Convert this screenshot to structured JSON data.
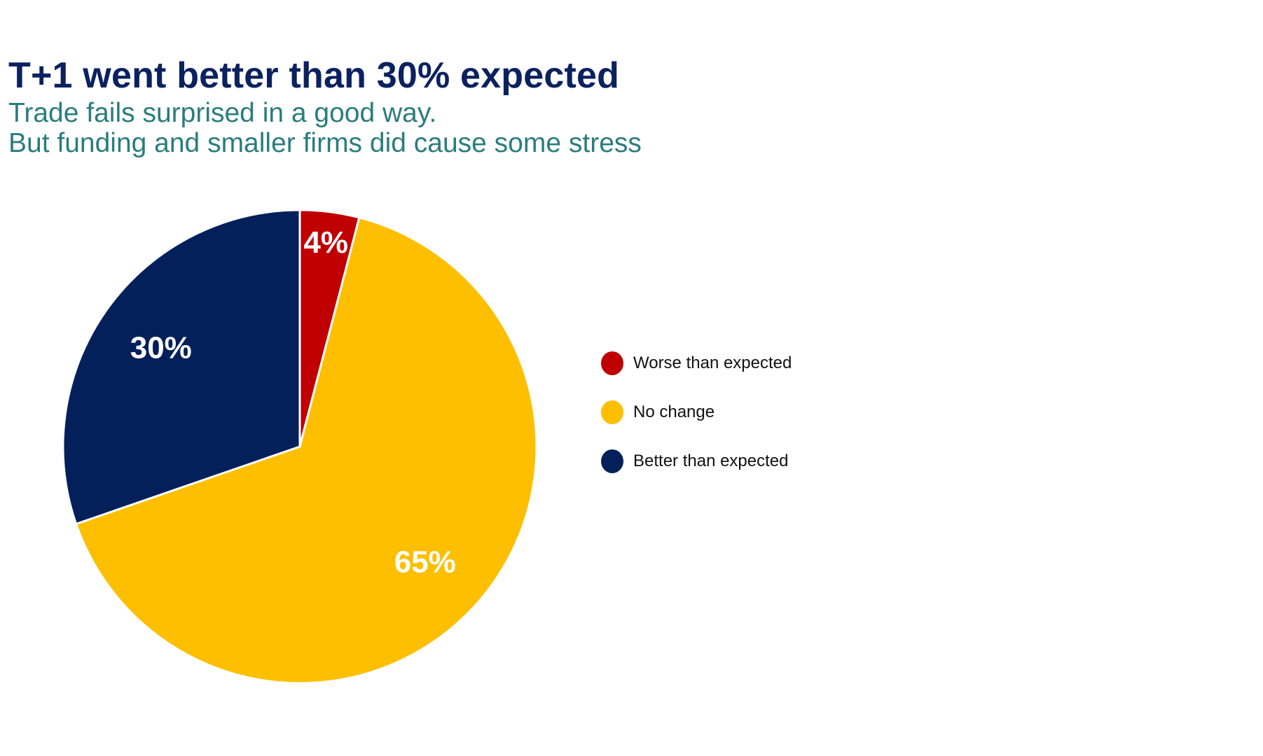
{
  "chart_data": {
    "type": "pie",
    "title": "T+1 went better than 30% expected",
    "subtitle": [
      "Trade fails surprised in a good way.",
      "But funding and smaller firms did cause some stress"
    ],
    "categories": [
      "Worse than expected",
      "No change",
      "Better than expected"
    ],
    "values": [
      4,
      65,
      30
    ],
    "labels": [
      "4%",
      "65%",
      "30%"
    ],
    "colors": [
      "#c00000",
      "#fdbf00",
      "#03205b"
    ],
    "legend_position": "right"
  }
}
